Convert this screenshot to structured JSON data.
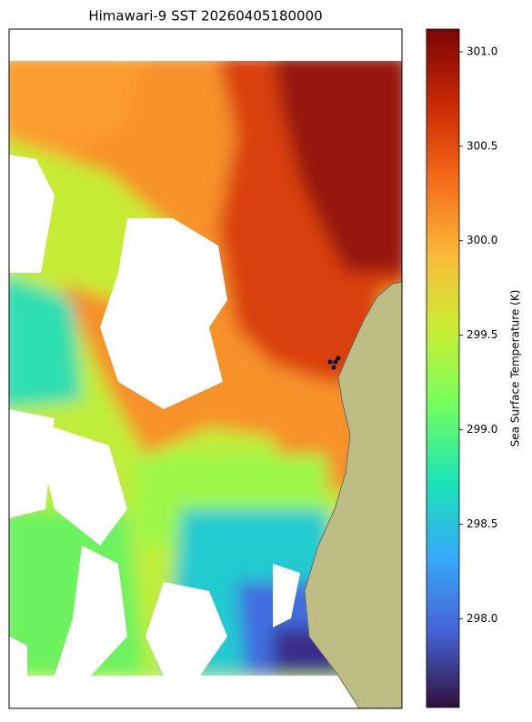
{
  "chart_data": {
    "type": "colorbar",
    "title": "Himawari-9 SST 20260405180000",
    "colorbar_label": "Sea Surface Temperature (K)",
    "ylim": [
      297.53,
      301.12
    ],
    "yticks": [
      {
        "value": 298,
        "label": "298.0"
      },
      298.5,
      {
        "value": 299,
        "label": "299.0"
      },
      299.5,
      {
        "value": 300,
        "label": "300.0"
      },
      300.5,
      {
        "value": 301,
        "label": "301.0"
      }
    ],
    "colormap": [
      "#30123b",
      "#4662d7",
      "#36aaf9",
      "#1ae4b6",
      "#72fe5e",
      "#c8ef34",
      "#faba39",
      "#f66b19",
      "#ca2a04",
      "#7a0403"
    ]
  }
}
